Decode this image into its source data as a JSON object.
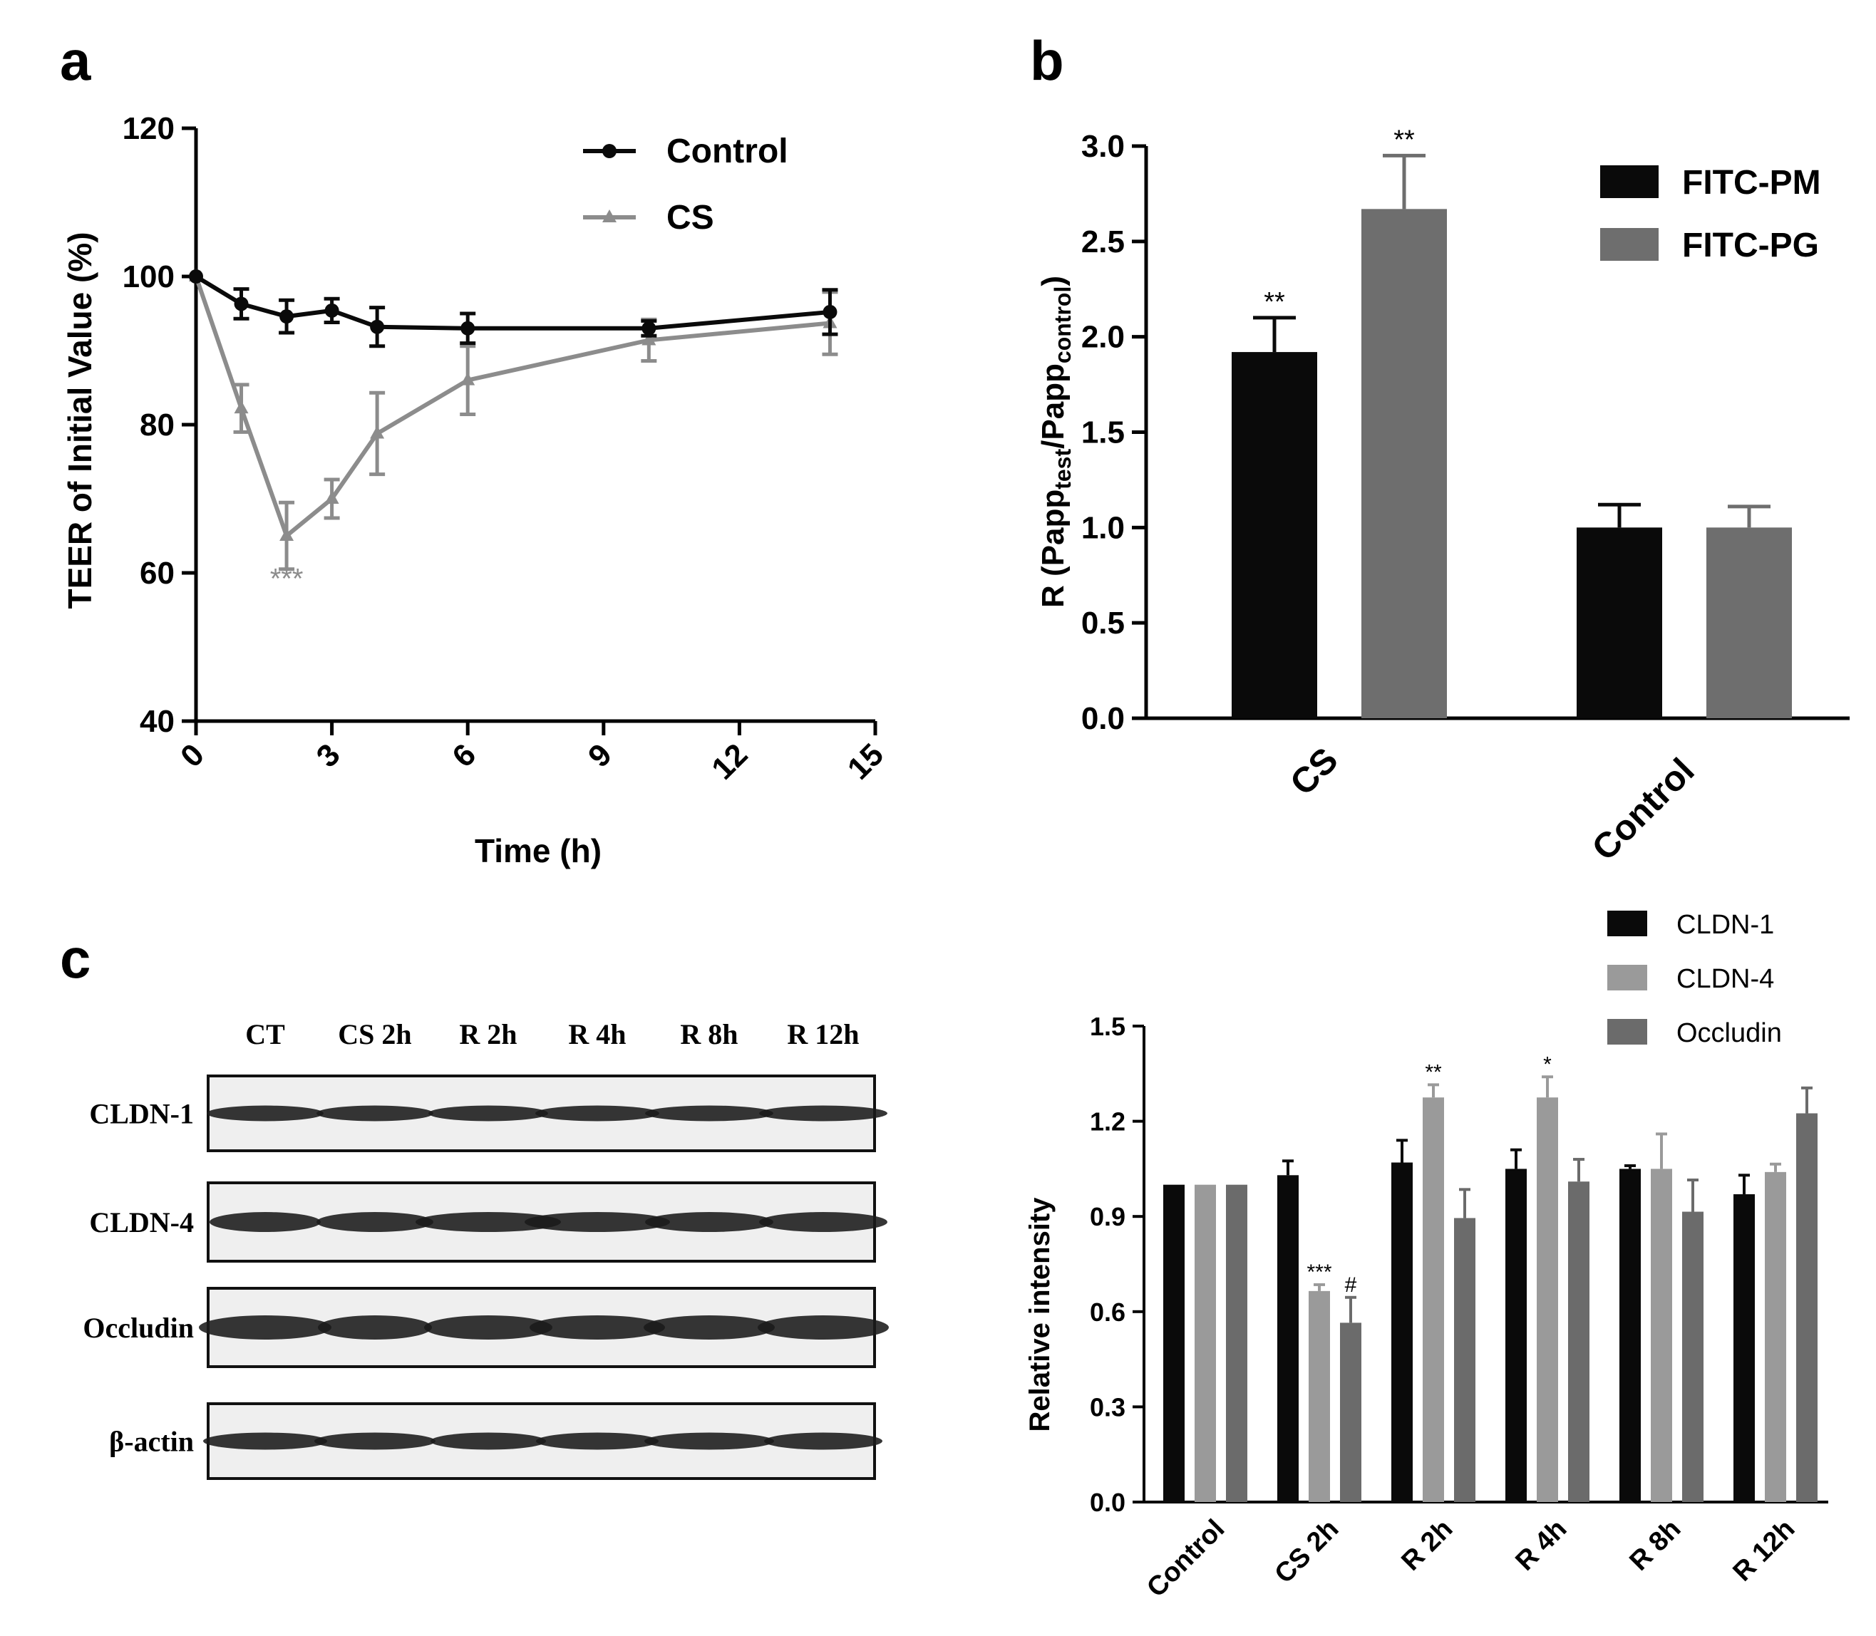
{
  "panel_labels": {
    "a": "a",
    "b": "b",
    "c": "c"
  },
  "colors": {
    "black": "#0a0a0a",
    "gray": "#8c8c8c",
    "mid": "#6e6e6e",
    "dark": "#5a5a5a",
    "light": "#9a9a9a",
    "occludin": "#6b6b6b"
  },
  "chart_data": [
    {
      "id": "a",
      "type": "line",
      "title": "",
      "xlabel": "Time (h)",
      "ylabel": "TEER of Initial Value (%)",
      "xlim": [
        0,
        15
      ],
      "ylim": [
        40,
        120
      ],
      "xticks": [
        "0",
        "3",
        "6",
        "9",
        "12",
        "15"
      ],
      "yticks": [
        "40",
        "60",
        "80",
        "100",
        "120"
      ],
      "legend": "top-right",
      "series": [
        {
          "name": "Control",
          "color": "#0a0a0a",
          "marker": "circle",
          "x": [
            0,
            1,
            2,
            3,
            4,
            6,
            10,
            14
          ],
          "y": [
            100,
            96.3,
            94.6,
            95.4,
            93.2,
            93.0,
            93.0,
            95.2
          ],
          "err": [
            0,
            2.0,
            2.2,
            1.6,
            2.6,
            2.0,
            1.0,
            3.0
          ]
        },
        {
          "name": "CS",
          "color": "#8c8c8c",
          "marker": "triangle",
          "x": [
            0,
            1,
            2,
            3,
            4,
            6,
            10,
            14
          ],
          "y": [
            100,
            82.2,
            65.0,
            70.0,
            78.8,
            86.0,
            91.4,
            93.7
          ],
          "err": [
            0,
            3.2,
            4.5,
            2.6,
            5.5,
            4.6,
            2.8,
            4.2
          ]
        }
      ],
      "annotations": [
        {
          "text": "***",
          "x": 2,
          "y": 59.3
        }
      ]
    },
    {
      "id": "b",
      "type": "bar",
      "title": "",
      "xlabel": "",
      "ylabel_parts": [
        "R (Papp",
        "test",
        "/Papp",
        "control",
        ")"
      ],
      "ylim": [
        0,
        3.0
      ],
      "yticks": [
        "0.0",
        "0.5",
        "1.0",
        "1.5",
        "2.0",
        "2.5",
        "3.0"
      ],
      "categories": [
        "CS",
        "Control"
      ],
      "legend": "top-right",
      "series": [
        {
          "name": "FITC-PM",
          "color": "#0a0a0a",
          "values": [
            1.92,
            1.0
          ],
          "err": [
            0.18,
            0.12
          ]
        },
        {
          "name": "FITC-PG",
          "color": "#6e6e6e",
          "values": [
            2.67,
            1.0
          ],
          "err": [
            0.28,
            0.11
          ]
        }
      ],
      "annotations": [
        {
          "text": "**",
          "category": 0,
          "series": 0
        },
        {
          "text": "**",
          "category": 0,
          "series": 1
        }
      ]
    },
    {
      "id": "c-blot",
      "type": "table",
      "lanes": [
        "CT",
        "CS 2h",
        "R 2h",
        "R 4h",
        "R 8h",
        "R 12h"
      ],
      "rows": [
        "CLDN-1",
        "CLDN-4",
        "Occludin",
        "β-actin"
      ]
    },
    {
      "id": "c-bar",
      "type": "bar",
      "title": "",
      "xlabel": "",
      "ylabel": "Relative intensity",
      "ylim": [
        0,
        1.5
      ],
      "yticks": [
        "0.0",
        "0.3",
        "0.6",
        "0.9",
        "1.2",
        "1.5"
      ],
      "categories": [
        "Control",
        "CS 2h",
        "R 2h",
        "R 4h",
        "R 8h",
        "R 12h"
      ],
      "legend": "top-right",
      "series": [
        {
          "name": "CLDN-1",
          "color": "#0a0a0a",
          "values": [
            1.0,
            1.03,
            1.07,
            1.05,
            1.05,
            0.97
          ],
          "err": [
            0,
            0.045,
            0.07,
            0.06,
            0.01,
            0.06
          ]
        },
        {
          "name": "CLDN-4",
          "color": "#9a9a9a",
          "values": [
            1.0,
            0.665,
            1.275,
            1.275,
            1.05,
            1.04
          ],
          "err": [
            0,
            0.02,
            0.04,
            0.065,
            0.11,
            0.025
          ]
        },
        {
          "name": "Occludin",
          "color": "#6b6b6b",
          "values": [
            1.0,
            0.565,
            0.895,
            1.01,
            0.915,
            1.225
          ],
          "err": [
            0,
            0.08,
            0.09,
            0.07,
            0.1,
            0.08
          ]
        }
      ],
      "annotations": [
        {
          "text": "***",
          "category": 1,
          "series": 1
        },
        {
          "text": "#",
          "category": 1,
          "series": 2
        },
        {
          "text": "**",
          "category": 2,
          "series": 1
        },
        {
          "text": "*",
          "category": 3,
          "series": 1
        }
      ]
    }
  ]
}
